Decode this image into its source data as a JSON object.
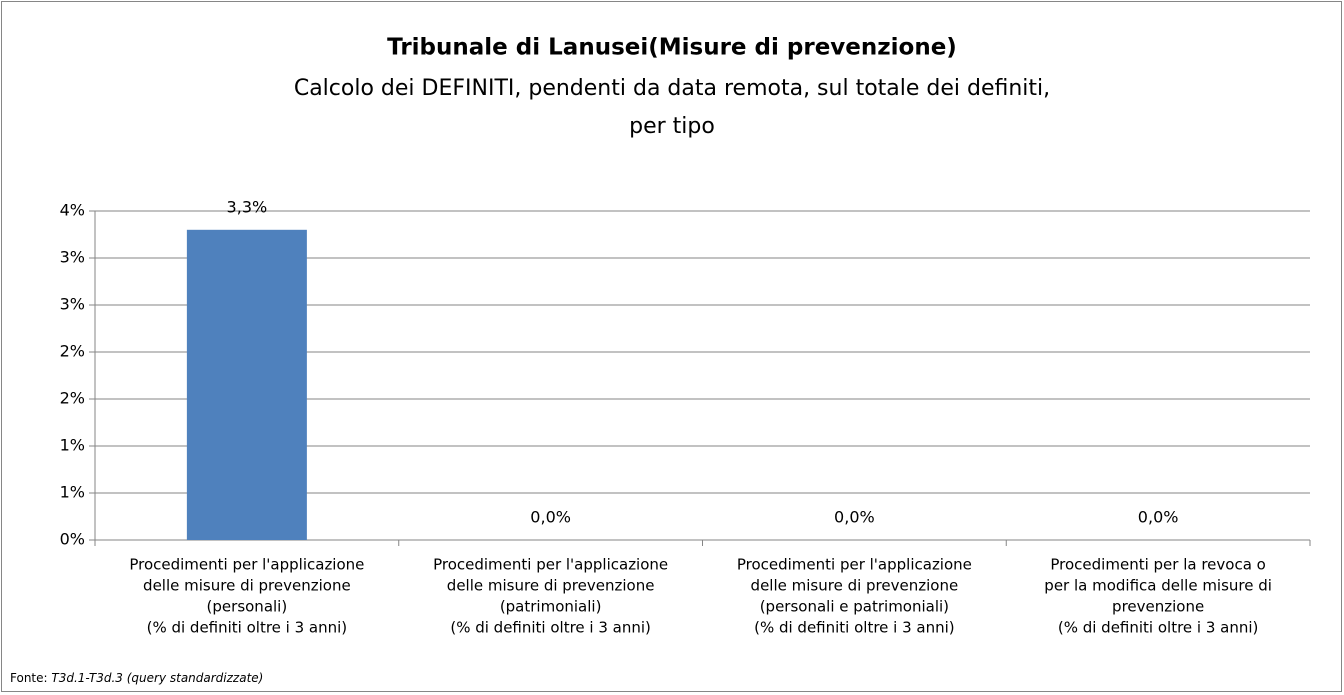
{
  "chart_data": {
    "type": "bar",
    "title": "Tribunale di Lanusei(Misure di prevenzione)",
    "subtitle": [
      "Calcolo dei DEFINITI, pendenti da data remota, sul totale dei definiti,",
      "per tipo"
    ],
    "categories": [
      [
        "Procedimenti per l'applicazione",
        "delle misure di prevenzione",
        "(personali)",
        "(% di definiti oltre i 3 anni)"
      ],
      [
        "Procedimenti per l'applicazione",
        "delle misure di prevenzione",
        "(patrimoniali)",
        "(% di definiti oltre i 3 anni)"
      ],
      [
        "Procedimenti per l'applicazione",
        "delle misure di prevenzione",
        "(personali e patrimoniali)",
        "(% di definiti oltre i 3 anni)"
      ],
      [
        "Procedimenti per la revoca o",
        "per la modifica delle misure di",
        "prevenzione",
        "(% di definiti oltre i 3 anni)"
      ]
    ],
    "values": [
      3.3,
      0,
      0,
      0
    ],
    "value_labels": [
      "3,3%",
      "0,0%",
      "0,0%",
      "0,0%"
    ],
    "color": "#4f81bd",
    "ylim": [
      0,
      3.5
    ],
    "yticks": [
      {
        "value": 0,
        "label": "0%"
      },
      {
        "value": 0.5,
        "label": "1%"
      },
      {
        "value": 1,
        "label": "1%"
      },
      {
        "value": 1.5,
        "label": "2%"
      },
      {
        "value": 2,
        "label": "2%"
      },
      {
        "value": 2.5,
        "label": "3%"
      },
      {
        "value": 3,
        "label": "3%"
      },
      {
        "value": 3.5,
        "label": "4%"
      }
    ],
    "grid": true,
    "source_prefix": "Fonte:",
    "source": "T3d.1-T3d.3 (query standardizzate)"
  }
}
